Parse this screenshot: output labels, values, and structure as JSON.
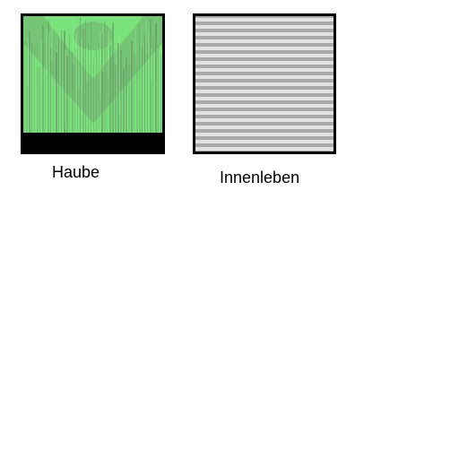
{
  "textures": [
    {
      "label": "Haube",
      "icon": "green-flame-texture-icon",
      "colors": {
        "border": "#000000",
        "base": "#79e27a",
        "streak_light": "#8ef08c",
        "streak_dark": "#6c8f6b",
        "band": "#000000"
      }
    },
    {
      "label": "Innenleben",
      "icon": "gray-stripes-texture-icon",
      "colors": {
        "border": "#000000",
        "stripe_light": "#e2e2e2",
        "stripe_dark": "#a9a9a9"
      }
    }
  ]
}
